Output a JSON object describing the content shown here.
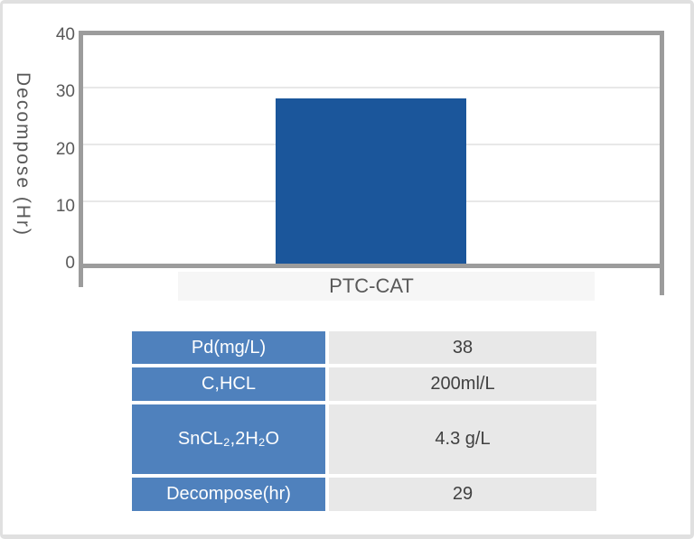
{
  "chart_data": {
    "type": "bar",
    "categories": [
      "PTC-CAT"
    ],
    "values": [
      29
    ],
    "title": "",
    "xlabel": "PTC-CAT",
    "ylabel": "Decompose (Hr)",
    "ylim": [
      0,
      40
    ],
    "yticks": [
      40,
      30,
      20,
      10,
      0
    ],
    "gridlines_at": [
      10,
      20,
      30
    ],
    "bar_color": "#1b569b",
    "grid": true,
    "legend": false
  },
  "table": {
    "rows": [
      {
        "label": "Pd(mg/L)",
        "value": "38"
      },
      {
        "label": "C,HCL",
        "value": "200ml/L"
      },
      {
        "label": "SnCL₂,2H₂O",
        "value": "4.3 g/L"
      },
      {
        "label": "Decompose(hr)",
        "value": "29"
      }
    ],
    "label_bg": "#4f81bd",
    "value_bg": "#e8e8e8"
  }
}
